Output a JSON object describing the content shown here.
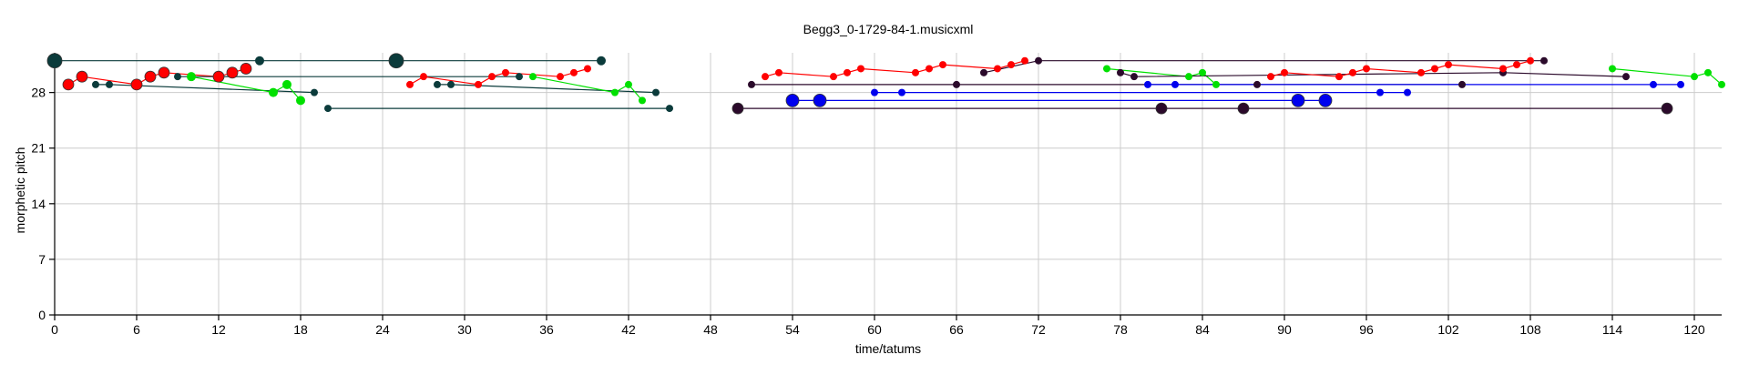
{
  "chart_data": {
    "type": "scatter",
    "title": "Begg3_0-1729-84-1.musicxml",
    "xlabel": "time/tatums",
    "ylabel": "morphetic pitch",
    "xlim": [
      0,
      122
    ],
    "ylim": [
      0,
      33
    ],
    "xticks": [
      "0",
      "6",
      "12",
      "18",
      "24",
      "30",
      "36",
      "42",
      "48",
      "54",
      "60",
      "66",
      "72",
      "78",
      "84",
      "90",
      "96",
      "102",
      "108",
      "114",
      "120"
    ],
    "yticks": [
      "0",
      "7",
      "14",
      "21",
      "28"
    ],
    "grid": true,
    "colors": {
      "red": "#ff0000",
      "green": "#00e000",
      "blue": "#0000ee",
      "teal": "#0b3b3b",
      "purple": "#2b0a2b"
    },
    "series": [
      {
        "color": "teal",
        "size": 5,
        "lines": true,
        "points": [
          [
            0,
            32
          ],
          [
            15,
            32
          ],
          [
            25,
            32
          ],
          [
            40,
            32
          ]
        ]
      },
      {
        "color": "teal",
        "size": 8,
        "lines": false,
        "points": [
          [
            0,
            32
          ],
          [
            25,
            32
          ]
        ]
      },
      {
        "color": "red",
        "size": 6,
        "lines": true,
        "points": [
          [
            1,
            29
          ],
          [
            2,
            30
          ],
          [
            6,
            29
          ],
          [
            7,
            30
          ],
          [
            8,
            30.5
          ],
          [
            12,
            30
          ],
          [
            13,
            30.5
          ],
          [
            14,
            31
          ]
        ]
      },
      {
        "color": "teal",
        "size": 4,
        "lines": true,
        "points": [
          [
            3,
            29
          ],
          [
            4,
            29
          ],
          [
            19,
            28
          ]
        ]
      },
      {
        "color": "teal",
        "size": 4,
        "lines": true,
        "points": [
          [
            9,
            30
          ],
          [
            34,
            30
          ]
        ]
      },
      {
        "color": "teal",
        "size": 4,
        "lines": true,
        "points": [
          [
            20,
            26
          ],
          [
            45,
            26
          ]
        ]
      },
      {
        "color": "green",
        "size": 5,
        "lines": true,
        "points": [
          [
            10,
            30
          ],
          [
            16,
            28
          ],
          [
            17,
            29
          ],
          [
            18,
            27
          ]
        ]
      },
      {
        "color": "red",
        "size": 4,
        "lines": true,
        "points": [
          [
            26,
            29
          ],
          [
            27,
            30
          ],
          [
            31,
            29
          ],
          [
            32,
            30
          ],
          [
            33,
            30.5
          ],
          [
            37,
            30
          ],
          [
            38,
            30.5
          ],
          [
            39,
            31
          ]
        ]
      },
      {
        "color": "teal",
        "size": 4,
        "lines": true,
        "points": [
          [
            28,
            29
          ],
          [
            29,
            29
          ],
          [
            44,
            28
          ]
        ]
      },
      {
        "color": "green",
        "size": 4,
        "lines": true,
        "points": [
          [
            35,
            30
          ],
          [
            41,
            28
          ],
          [
            42,
            29
          ],
          [
            43,
            27
          ]
        ]
      },
      {
        "color": "purple",
        "size": 6,
        "lines": true,
        "points": [
          [
            50,
            26
          ],
          [
            81,
            26
          ],
          [
            87,
            26
          ],
          [
            118,
            26
          ]
        ]
      },
      {
        "color": "purple",
        "size": 4,
        "lines": true,
        "points": [
          [
            51,
            29
          ],
          [
            66,
            29
          ],
          [
            88,
            29
          ],
          [
            103,
            29
          ]
        ]
      },
      {
        "color": "red",
        "size": 4,
        "lines": true,
        "points": [
          [
            52,
            30
          ],
          [
            53,
            30.5
          ],
          [
            57,
            30
          ],
          [
            58,
            30.5
          ],
          [
            59,
            31
          ],
          [
            63,
            30.5
          ],
          [
            64,
            31
          ],
          [
            65,
            31.5
          ],
          [
            69,
            31
          ],
          [
            70,
            31.5
          ],
          [
            71,
            32
          ]
        ]
      },
      {
        "color": "blue",
        "size": 7,
        "lines": true,
        "points": [
          [
            54,
            27
          ],
          [
            56,
            27
          ],
          [
            91,
            27
          ],
          [
            93,
            27
          ]
        ]
      },
      {
        "color": "blue",
        "size": 4,
        "lines": true,
        "points": [
          [
            60,
            28
          ],
          [
            62,
            28
          ],
          [
            97,
            28
          ],
          [
            99,
            28
          ]
        ]
      },
      {
        "color": "purple",
        "size": 4,
        "lines": true,
        "points": [
          [
            68,
            30.5
          ],
          [
            72,
            32
          ],
          [
            109,
            32
          ]
        ]
      },
      {
        "color": "green",
        "size": 4,
        "lines": true,
        "points": [
          [
            77,
            31
          ],
          [
            83,
            30
          ],
          [
            84,
            30.5
          ],
          [
            85,
            29
          ]
        ]
      },
      {
        "color": "purple",
        "size": 4,
        "lines": true,
        "points": [
          [
            78,
            30.5
          ],
          [
            79,
            30
          ],
          [
            106,
            30.5
          ],
          [
            115,
            30
          ]
        ]
      },
      {
        "color": "blue",
        "size": 4,
        "lines": true,
        "points": [
          [
            80,
            29
          ],
          [
            82,
            29
          ],
          [
            117,
            29
          ],
          [
            119,
            29
          ]
        ]
      },
      {
        "color": "red",
        "size": 4,
        "lines": true,
        "points": [
          [
            89,
            30
          ],
          [
            90,
            30.5
          ],
          [
            94,
            30
          ],
          [
            95,
            30.5
          ],
          [
            96,
            31
          ],
          [
            100,
            30.5
          ],
          [
            101,
            31
          ],
          [
            102,
            31.5
          ],
          [
            106,
            31
          ],
          [
            107,
            31.5
          ],
          [
            108,
            32
          ]
        ]
      },
      {
        "color": "green",
        "size": 4,
        "lines": true,
        "points": [
          [
            114,
            31
          ],
          [
            120,
            30
          ],
          [
            121,
            30.5
          ],
          [
            122,
            29
          ]
        ]
      }
    ]
  }
}
